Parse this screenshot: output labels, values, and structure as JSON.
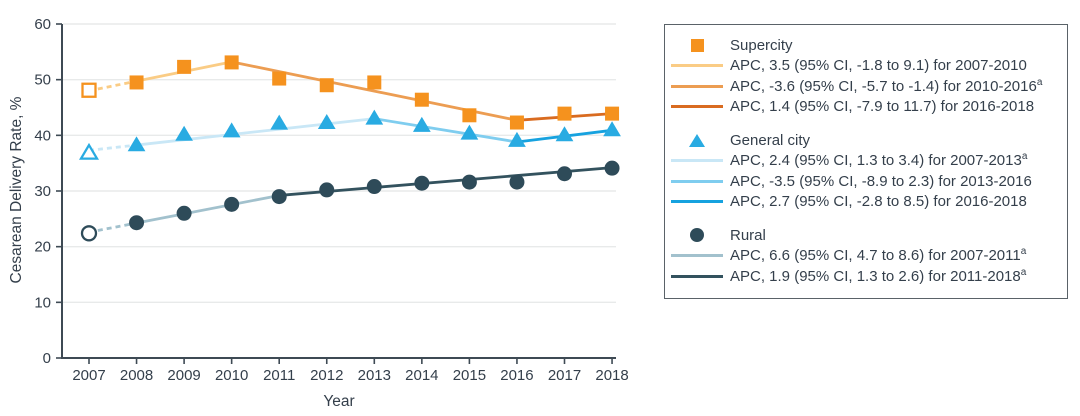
{
  "chart_data": {
    "type": "line",
    "xlabel": "Year",
    "ylabel": "Cesarean Delivery Rate, %",
    "x": [
      2007,
      2008,
      2009,
      2010,
      2011,
      2012,
      2013,
      2014,
      2015,
      2016,
      2017,
      2018
    ],
    "y_ticks": [
      0,
      10,
      20,
      30,
      40,
      50,
      60
    ],
    "ylim": [
      0,
      60
    ],
    "grid": true,
    "legend_position": "right",
    "open_marker_year": 2007,
    "dashed_connector_years": [
      2007,
      2008
    ],
    "colors": {
      "text": "#343F4B",
      "axis": "#3E4A54",
      "grid": "#E8EAEA",
      "legend_border": "#5A6268"
    },
    "series": [
      {
        "name": "Supercity",
        "marker": "square",
        "marker_color": "#F5921E",
        "values": [
          48.1,
          49.5,
          52.3,
          53.1,
          50.2,
          49.0,
          49.5,
          46.4,
          43.6,
          42.3,
          43.9,
          43.9
        ],
        "trend_segments": [
          {
            "apc_label": "APC, 3.5 (95% CI, -1.8 to 9.1) for 2007-2010",
            "sup": "",
            "color": "#FACC85",
            "x_start": 2007,
            "x_end": 2010,
            "y_start": 48.0,
            "y_end": 53.2
          },
          {
            "apc_label": "APC, -3.6 (95% CI, -5.7 to -1.4) for 2010-2016",
            "sup": "a",
            "color": "#EC9D52",
            "x_start": 2010,
            "x_end": 2016,
            "y_start": 53.2,
            "y_end": 42.7
          },
          {
            "apc_label": "APC, 1.4 (95% CI, -7.9 to 11.7) for 2016-2018",
            "sup": "",
            "color": "#D96B20",
            "x_start": 2016,
            "x_end": 2018,
            "y_start": 42.7,
            "y_end": 43.9
          }
        ]
      },
      {
        "name": "General city",
        "marker": "triangle",
        "marker_color": "#29ABE2",
        "values": [
          36.9,
          38.3,
          40.2,
          40.8,
          42.2,
          42.3,
          43.1,
          41.8,
          40.4,
          39.1,
          40.1,
          41.0
        ],
        "trend_segments": [
          {
            "apc_label": "APC, 2.4 (95% CI, 1.3 to 3.4) for 2007-2013",
            "sup": "a",
            "color": "#C9E7F6",
            "x_start": 2007,
            "x_end": 2013,
            "y_start": 37.3,
            "y_end": 43.0
          },
          {
            "apc_label": "APC, -3.5 (95% CI, -8.9 to 2.3) for 2013-2016",
            "sup": "",
            "color": "#7FCDEF",
            "x_start": 2013,
            "x_end": 2016,
            "y_start": 43.0,
            "y_end": 38.8
          },
          {
            "apc_label": "APC, 2.7 (95% CI, -2.8 to 8.5) for 2016-2018",
            "sup": "",
            "color": "#16A2DF",
            "x_start": 2016,
            "x_end": 2018,
            "y_start": 38.8,
            "y_end": 40.9
          }
        ]
      },
      {
        "name": "Rural",
        "marker": "circle",
        "marker_color": "#2E4B59",
        "values": [
          22.4,
          24.3,
          26.0,
          27.6,
          29.0,
          30.2,
          30.8,
          31.4,
          31.6,
          31.6,
          33.1,
          34.1
        ],
        "trend_segments": [
          {
            "apc_label": "APC, 6.6 (95% CI, 4.7 to 8.6) for 2007-2011",
            "sup": "a",
            "color": "#A2C1CD",
            "x_start": 2007,
            "x_end": 2011,
            "y_start": 22.6,
            "y_end": 29.2
          },
          {
            "apc_label": "APC, 1.9 (95% CI, 1.3 to 2.6) for 2011-2018",
            "sup": "a",
            "color": "#33525E",
            "x_start": 2011,
            "x_end": 2018,
            "y_start": 29.2,
            "y_end": 34.2
          }
        ]
      }
    ]
  }
}
